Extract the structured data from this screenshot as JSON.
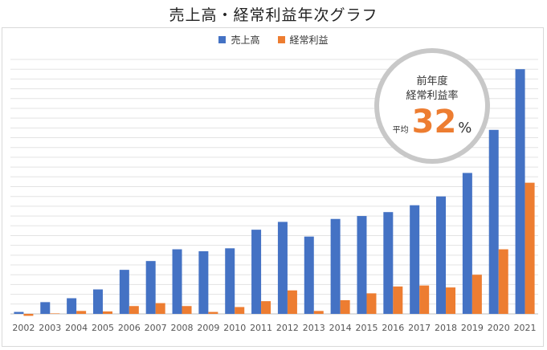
{
  "colors": {
    "sales": "#4472c4",
    "profit": "#ed7d31",
    "grid": "#e3e3e3",
    "axis": "#bfbfbf"
  },
  "chart_data": {
    "type": "bar",
    "title": "売上高・経常利益年次グラフ",
    "categories": [
      "2002",
      "2003",
      "2004",
      "2005",
      "2006",
      "2007",
      "2008",
      "2009",
      "2010",
      "2011",
      "2012",
      "2013",
      "2014",
      "2015",
      "2016",
      "2017",
      "2018",
      "2019",
      "2020",
      "2021"
    ],
    "series": [
      {
        "name": "売上高",
        "values": [
          0.2,
          1.2,
          1.6,
          2.5,
          4.5,
          5.4,
          6.6,
          6.4,
          6.7,
          8.6,
          9.4,
          7.9,
          9.7,
          10.0,
          10.4,
          11.1,
          12.0,
          14.4,
          18.8,
          25.0
        ]
      },
      {
        "name": "経常利益",
        "values": [
          -0.2,
          0.05,
          0.3,
          0.25,
          0.8,
          1.1,
          0.8,
          0.2,
          0.7,
          1.3,
          2.4,
          0.3,
          1.4,
          2.1,
          2.8,
          2.9,
          2.7,
          4.0,
          6.6,
          13.4
        ]
      }
    ],
    "ylim": [
      -0.5,
      26
    ],
    "grid_step": 1,
    "grid": true,
    "legend": "top-center"
  },
  "badge": {
    "line1": "前年度",
    "line2": "経常利益率",
    "prefix": "平均",
    "value": "32",
    "unit": "%"
  }
}
